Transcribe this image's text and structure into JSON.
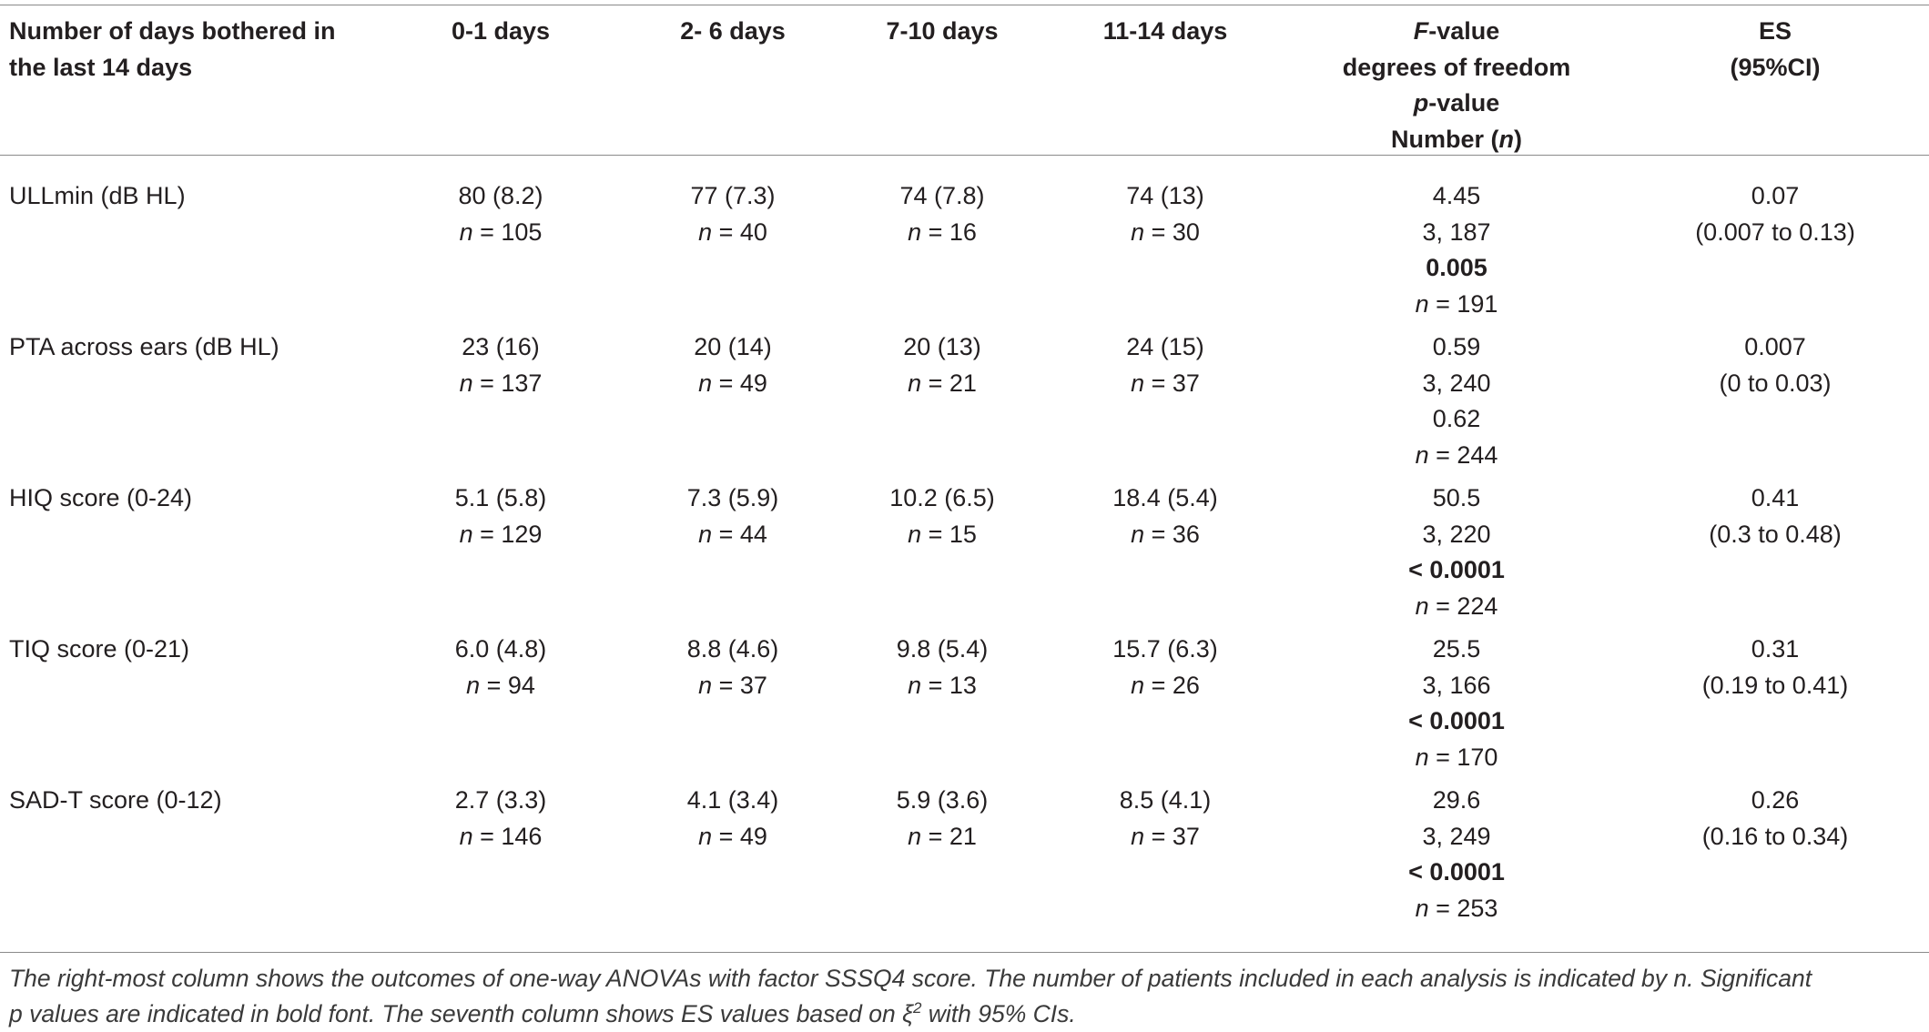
{
  "header": {
    "col0": [
      "Number of days bothered in",
      "the last 14 days"
    ],
    "col1": "0-1 days",
    "col2": "2- 6 days",
    "col3": "7-10 days",
    "col4": "11-14 days",
    "col5": {
      "line1_italic": "F",
      "line1_rest": "-value",
      "line2": "degrees of freedom",
      "line3_italic": "p",
      "line3_rest": "-value",
      "line4_pre": "Number (",
      "line4_italic": "n",
      "line4_post": ")"
    },
    "col6": [
      "ES",
      "(95%CI)"
    ]
  },
  "rows": [
    {
      "label": "ULLmin (dB HL)",
      "cells": [
        {
          "value": "80 (8.2)",
          "n": "105"
        },
        {
          "value": "77 (7.3)",
          "n": "40"
        },
        {
          "value": "74 (7.8)",
          "n": "16"
        },
        {
          "value": "74 (13)",
          "n": "30"
        }
      ],
      "stats": {
        "f": "4.45",
        "df": "3, 187",
        "p": "0.005",
        "p_bold": true,
        "n": "191"
      },
      "es": {
        "value": "0.07",
        "ci": "(0.007 to 0.13)"
      }
    },
    {
      "label": "PTA across ears (dB HL)",
      "cells": [
        {
          "value": "23 (16)",
          "n": "137"
        },
        {
          "value": "20 (14)",
          "n": "49"
        },
        {
          "value": "20 (13)",
          "n": "21"
        },
        {
          "value": "24 (15)",
          "n": "37"
        }
      ],
      "stats": {
        "f": "0.59",
        "df": "3, 240",
        "p": "0.62",
        "p_bold": false,
        "n": "244"
      },
      "es": {
        "value": "0.007",
        "ci": "(0 to 0.03)"
      }
    },
    {
      "label": "HIQ score (0-24)",
      "cells": [
        {
          "value": "5.1 (5.8)",
          "n": "129"
        },
        {
          "value": "7.3 (5.9)",
          "n": "44"
        },
        {
          "value": "10.2 (6.5)",
          "n": "15"
        },
        {
          "value": "18.4 (5.4)",
          "n": "36"
        }
      ],
      "stats": {
        "f": "50.5",
        "df": "3, 220",
        "p": "< 0.0001",
        "p_bold": true,
        "n": "224"
      },
      "es": {
        "value": "0.41",
        "ci": "(0.3 to 0.48)"
      }
    },
    {
      "label": "TIQ score (0-21)",
      "cells": [
        {
          "value": "6.0 (4.8)",
          "n": "94"
        },
        {
          "value": "8.8 (4.6)",
          "n": "37"
        },
        {
          "value": "9.8 (5.4)",
          "n": "13"
        },
        {
          "value": "15.7 (6.3)",
          "n": "26"
        }
      ],
      "stats": {
        "f": "25.5",
        "df": "3, 166",
        "p": "< 0.0001",
        "p_bold": true,
        "n": "170"
      },
      "es": {
        "value": "0.31",
        "ci": "(0.19 to 0.41)"
      }
    },
    {
      "label": "SAD-T score (0-12)",
      "cells": [
        {
          "value": "2.7 (3.3)",
          "n": "146"
        },
        {
          "value": "4.1 (3.4)",
          "n": "49"
        },
        {
          "value": "5.9 (3.6)",
          "n": "21"
        },
        {
          "value": "8.5 (4.1)",
          "n": "37"
        }
      ],
      "stats": {
        "f": "29.6",
        "df": "3, 249",
        "p": "< 0.0001",
        "p_bold": true,
        "n": "253"
      },
      "es": {
        "value": "0.26",
        "ci": "(0.16 to 0.34)"
      }
    }
  ],
  "n_prefix_italic": "n",
  "n_prefix_rest": " = ",
  "footnote": {
    "line1": "The right-most column shows the outcomes of one-way ANOVAs with factor SSSQ4 score. The number of patients included in each analysis is indicated by n. Significant",
    "line2_pre": "p values are indicated in bold font. The seventh column shows ES values based on ",
    "symbol": "ξ",
    "superscript": "2",
    "line2_post": " with 95% CIs."
  }
}
